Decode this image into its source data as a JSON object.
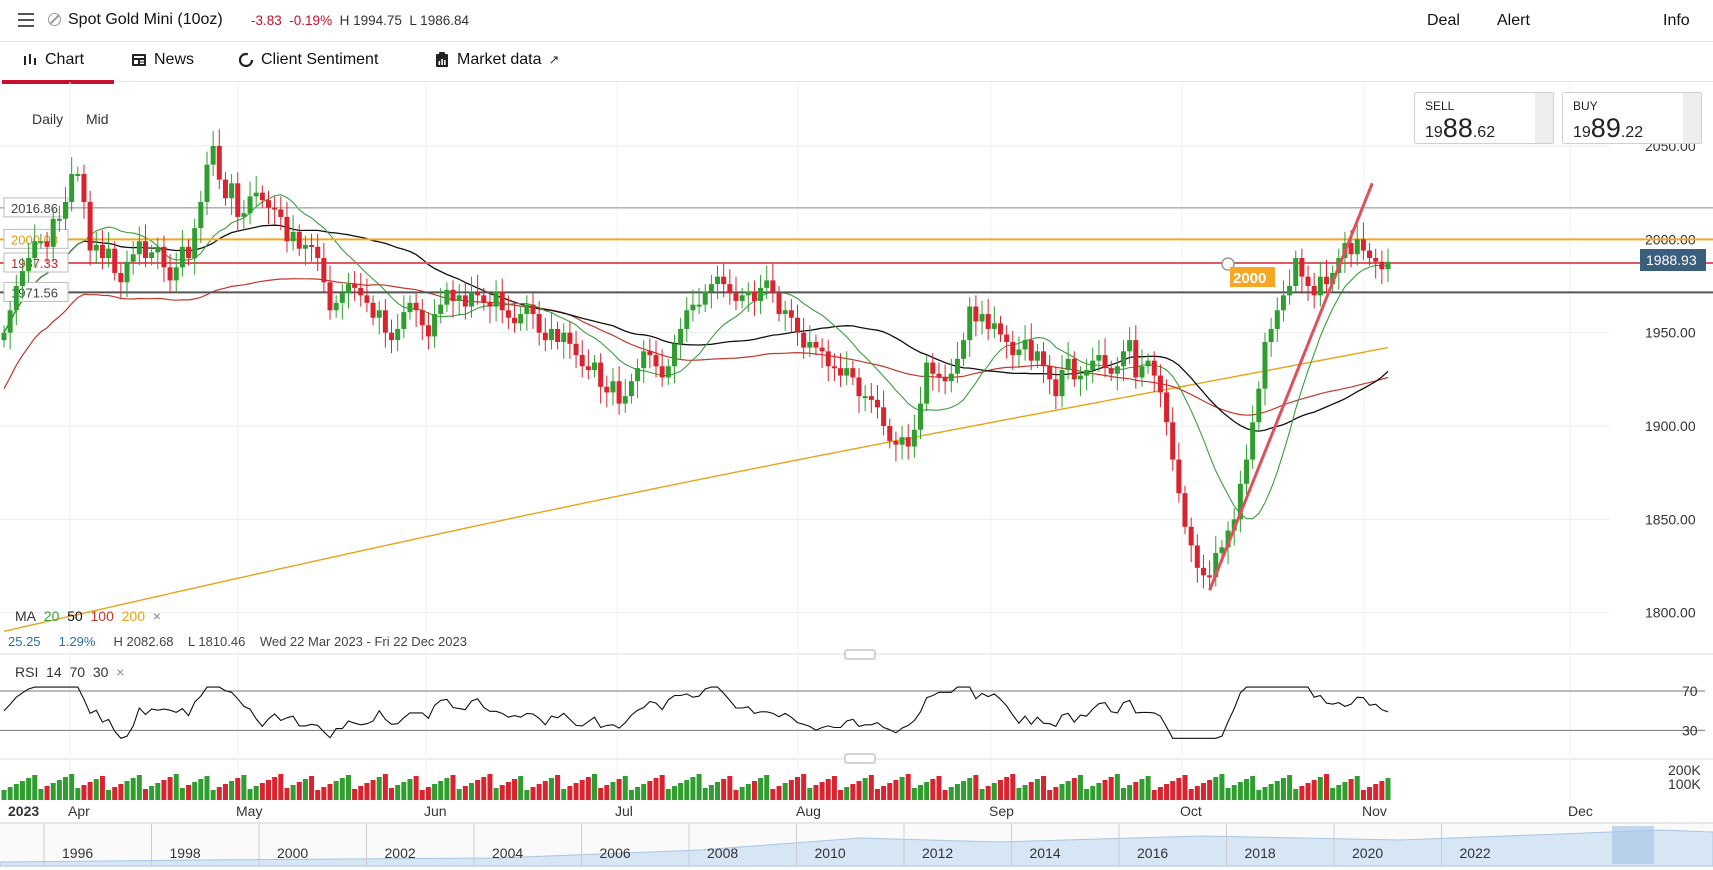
{
  "topbar": {
    "instrument": "Spot Gold Mini (10oz)",
    "change": "-3.83",
    "change_pct": "-0.19%",
    "high": "H 1994.75",
    "low": "L 1986.84",
    "deal": "Deal",
    "alert": "Alert",
    "info": "Info"
  },
  "tabs": [
    {
      "label": "Chart"
    },
    {
      "label": "News"
    },
    {
      "label": "Client Sentiment"
    },
    {
      "label": "Market data"
    }
  ],
  "chart_header": {
    "interval": "Daily",
    "price_type": "Mid"
  },
  "sell": {
    "label": "SELL",
    "prefix": "19",
    "big": "88",
    "suffix": ".62"
  },
  "buy": {
    "label": "BUY",
    "prefix": "19",
    "big": "89",
    "suffix": ".22"
  },
  "ma_legend": {
    "title": "MA",
    "p20": "20",
    "p50": "50",
    "p100": "100",
    "p200": "200",
    "close": "×"
  },
  "stats": {
    "v1": "25.25",
    "v2": "1.29%",
    "high": "H 2082.68",
    "low": "L 1810.46",
    "range": "Wed 22 Mar 2023 - Fri 22 Dec 2023"
  },
  "rsi_legend": {
    "title": "RSI",
    "p1": "14",
    "p2": "70",
    "p3": "30",
    "close": "×"
  },
  "colors": {
    "up": "#2e9e2e",
    "down": "#d9232e",
    "ma20": "#3a9e3a",
    "ma50": "#111111",
    "ma100": "#c0392b",
    "ma200": "#e8a317",
    "accent": "#c8102e",
    "level2000": "#f5a623"
  },
  "chart_data": {
    "type": "candlestick",
    "instrument": "Spot Gold Mini (10oz)",
    "interval": "Daily",
    "ylim": [
      1780,
      2080
    ],
    "y_ticks": [
      1800,
      1850,
      1900,
      1950,
      2000,
      2050
    ],
    "y_tick_labels": [
      "1800.00",
      "1850.00",
      "1900.00",
      "1950.00",
      "2000.00",
      "2050.00"
    ],
    "x_month_labels": [
      "2023",
      "Apr",
      "May",
      "Jun",
      "Jul",
      "Aug",
      "Sep",
      "Oct",
      "Nov",
      "Dec"
    ],
    "current_price": "1988.93",
    "level_labels": [
      "2016.86",
      "2000.00",
      "1987.33",
      "1971.56"
    ],
    "levels": [
      2016.86,
      2000.0,
      1987.33,
      1971.56
    ],
    "alert_level": "2000",
    "trendline": [
      [
        "2023-10-06",
        1812
      ],
      [
        "2023-11-01",
        2030
      ]
    ],
    "rsi": {
      "upper": 70,
      "lower": 30,
      "upper_label": "70",
      "lower_label": "30"
    },
    "volume_ticks": [
      "200K",
      "100K"
    ],
    "navigator_years": [
      "1996",
      "1998",
      "2000",
      "2002",
      "2004",
      "2006",
      "2008",
      "2010",
      "2012",
      "2014",
      "2016",
      "2018",
      "2020",
      "2022"
    ],
    "closes": [
      1950,
      1962,
      1975,
      1983,
      1990,
      1999,
      1999,
      1996,
      2011,
      2011,
      2020,
      2035,
      2035,
      2020,
      1994,
      1997,
      1990,
      1995,
      1982,
      1977,
      1988,
      1992,
      1999,
      1990,
      1993,
      1996,
      1985,
      1978,
      1985,
      1996,
      1990,
      2006,
      2020,
      2040,
      2050,
      2032,
      2022,
      2030,
      2012,
      2014,
      2023,
      2025,
      2021,
      2017,
      2016,
      2012,
      1999,
      2004,
      1995,
      1997,
      1996,
      1990,
      1977,
      1962,
      1966,
      1971,
      1976,
      1974,
      1970,
      1966,
      1958,
      1962,
      1950,
      1946,
      1952,
      1961,
      1966,
      1962,
      1954,
      1948,
      1960,
      1965,
      1973,
      1967,
      1970,
      1964,
      1972,
      1970,
      1966,
      1964,
      1972,
      1962,
      1958,
      1955,
      1960,
      1965,
      1960,
      1950,
      1946,
      1952,
      1945,
      1950,
      1944,
      1938,
      1932,
      1930,
      1934,
      1921,
      1918,
      1924,
      1912,
      1916,
      1924,
      1931,
      1940,
      1938,
      1932,
      1926,
      1932,
      1944,
      1952,
      1962,
      1965,
      1965,
      1972,
      1976,
      1980,
      1976,
      1971,
      1967,
      1970,
      1972,
      1967,
      1974,
      1978,
      1971,
      1960,
      1962,
      1958,
      1950,
      1942,
      1945,
      1942,
      1940,
      1932,
      1931,
      1927,
      1931,
      1926,
      1916,
      1916,
      1914,
      1910,
      1900,
      1892,
      1890,
      1894,
      1889,
      1898,
      1912,
      1934,
      1928,
      1926,
      1924,
      1928,
      1936,
      1946,
      1964,
      1956,
      1960,
      1952,
      1955,
      1949,
      1945,
      1938,
      1941,
      1946,
      1935,
      1940,
      1932,
      1925,
      1916,
      1930,
      1936,
      1925,
      1927,
      1930,
      1935,
      1938,
      1931,
      1928,
      1932,
      1940,
      1946,
      1926,
      1932,
      1935,
      1927,
      1918,
      1902,
      1882,
      1864,
      1846,
      1836,
      1824,
      1820,
      1819,
      1832,
      1835,
      1844,
      1850,
      1869,
      1882,
      1902,
      1920,
      1945,
      1952,
      1962,
      1970,
      1975,
      1990,
      1980,
      1975,
      1970,
      1980,
      1976,
      1982,
      1990,
      1998,
      1992,
      2000,
      1994,
      1990,
      1988,
      1984,
      1988
    ]
  }
}
